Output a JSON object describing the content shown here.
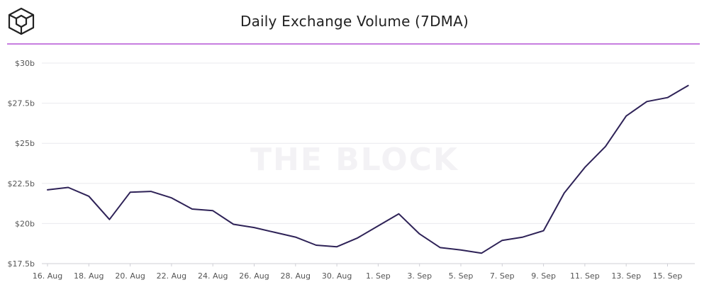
{
  "header": {
    "title": "Daily Exchange Volume (7DMA)"
  },
  "watermark": "THE BLOCK",
  "colors": {
    "line": "#2e2257",
    "accent_rule": "#c77ee0",
    "grid": "#e9e9ee",
    "text": "#222222"
  },
  "chart_data": {
    "type": "line",
    "title": "Daily Exchange Volume (7DMA)",
    "xlabel": "",
    "ylabel": "",
    "ylim": [
      17.5,
      30
    ],
    "yticks": [
      {
        "value": 30,
        "label": "$30b"
      },
      {
        "value": 27.5,
        "label": "$27.5b"
      },
      {
        "value": 25,
        "label": "$25b"
      },
      {
        "value": 22.5,
        "label": "$22.5b"
      },
      {
        "value": 20,
        "label": "$20b"
      },
      {
        "value": 17.5,
        "label": "$17.5b"
      }
    ],
    "xticks": [
      "16. Aug",
      "18. Aug",
      "20. Aug",
      "22. Aug",
      "24. Aug",
      "26. Aug",
      "28. Aug",
      "30. Aug",
      "1. Sep",
      "3. Sep",
      "5. Sep",
      "7. Sep",
      "9. Sep",
      "11. Sep",
      "13. Sep",
      "15. Sep"
    ],
    "x": [
      "16. Aug",
      "17. Aug",
      "18. Aug",
      "19. Aug",
      "20. Aug",
      "21. Aug",
      "22. Aug",
      "23. Aug",
      "24. Aug",
      "25. Aug",
      "26. Aug",
      "27. Aug",
      "28. Aug",
      "29. Aug",
      "30. Aug",
      "31. Aug",
      "1. Sep",
      "2. Sep",
      "3. Sep",
      "4. Sep",
      "5. Sep",
      "6. Sep",
      "7. Sep",
      "8. Sep",
      "9. Sep",
      "10. Sep",
      "11. Sep",
      "12. Sep",
      "13. Sep",
      "14. Sep",
      "15. Sep",
      "16. Sep"
    ],
    "series": [
      {
        "values": [
          22.1,
          22.25,
          21.7,
          20.25,
          21.95,
          22.0,
          21.6,
          20.9,
          20.8,
          19.95,
          19.75,
          19.45,
          19.15,
          18.65,
          18.55,
          19.1,
          19.85,
          20.6,
          19.35,
          18.5,
          18.35,
          18.15,
          18.95,
          19.15,
          19.55,
          21.9,
          23.5,
          24.8,
          26.7,
          27.6,
          27.85,
          28.6
        ]
      }
    ],
    "grid": true,
    "legend": "none"
  }
}
